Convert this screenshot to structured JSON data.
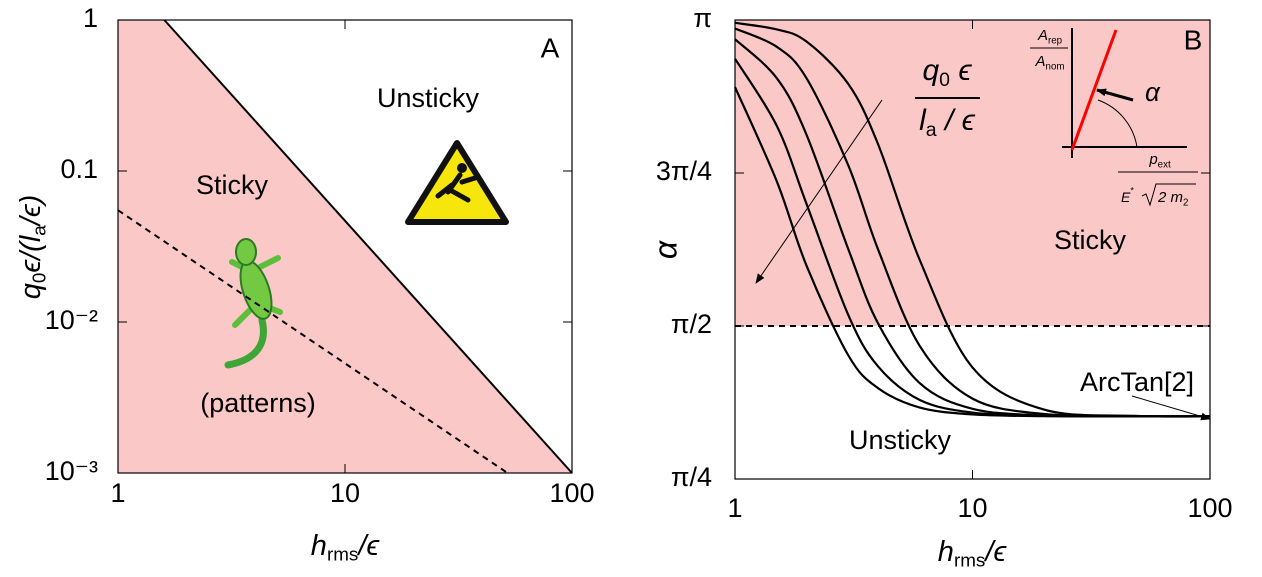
{
  "chart_data": [
    {
      "type": "line",
      "panel_label": "A",
      "xlabel": [
        "h",
        "rms",
        "/ϵ"
      ],
      "ylabel": [
        "q",
        "0",
        "ϵ/(",
        "l",
        "a",
        "/ϵ)"
      ],
      "xscale": "log",
      "yscale": "log",
      "xlim": [
        1,
        100
      ],
      "ylim": [
        0.001,
        1
      ],
      "xticks": [
        1,
        10,
        100
      ],
      "yticks": [
        {
          "value": 0.001,
          "label": "10⁻³"
        },
        {
          "value": 0.01,
          "label": "10⁻²"
        },
        0.1,
        1
      ],
      "region_color": "#fbc8c8",
      "series": [
        {
          "x": [
            1.6,
            100
          ],
          "values": [
            1,
            0.001
          ],
          "color": "#000000",
          "dash": false
        },
        {
          "x": [
            1,
            52
          ],
          "values": [
            0.055,
            0.001
          ],
          "color": "#000000",
          "dash": true
        }
      ],
      "annotations": [
        "Unsticky",
        "Sticky",
        "(patterns)"
      ]
    },
    {
      "type": "line",
      "panel_label": "B",
      "xlabel": [
        "h",
        "rms",
        "/ϵ"
      ],
      "ylabel": "α",
      "xscale": "log",
      "yscale": "linear",
      "xlim": [
        1,
        100
      ],
      "ylim": [
        0.7854,
        3.1416
      ],
      "xticks": [
        1,
        10,
        100
      ],
      "yticks": [
        {
          "value": 0.7854,
          "label": "π/4"
        },
        {
          "value": 1.5708,
          "label": "π/2"
        },
        {
          "value": 2.3562,
          "label": "3π/4"
        },
        {
          "value": 3.1416,
          "label": "π"
        }
      ],
      "x": [
        1,
        1.5,
        2,
        3,
        4,
        6,
        10,
        20,
        50,
        100
      ],
      "series": [
        {
          "color": "#000000",
          "values": [
            3.127,
            3.093,
            3.031,
            2.813,
            2.505,
            1.909,
            1.358,
            1.142,
            1.109,
            1.107
          ]
        },
        {
          "color": "#000000",
          "values": [
            3.098,
            3.004,
            2.843,
            2.395,
            1.965,
            1.468,
            1.198,
            1.119,
            1.108,
            1.107
          ]
        },
        {
          "color": "#000000",
          "values": [
            3.043,
            2.843,
            2.553,
            1.965,
            1.585,
            1.277,
            1.146,
            1.112,
            1.107,
            1.107
          ]
        },
        {
          "color": "#000000",
          "values": [
            2.943,
            2.598,
            2.198,
            1.627,
            1.364,
            1.191,
            1.126,
            1.109,
            1.107,
            1.107
          ]
        },
        {
          "color": "#000000",
          "values": [
            2.797,
            2.313,
            1.881,
            1.42,
            1.252,
            1.152,
            1.117,
            1.108,
            1.107,
            1.107
          ]
        }
      ],
      "threshold": 1.5708,
      "region_color": "#fbc8c8",
      "annotations": [
        "Sticky",
        "Unsticky",
        "ArcTan[2]"
      ],
      "parameter_label": {
        "numerator": [
          "q",
          "0",
          " ϵ"
        ],
        "denominator": [
          "l",
          "a",
          " / ϵ"
        ]
      },
      "inset": {
        "line_color": "#ff0000",
        "y_num": [
          "A",
          "rep"
        ],
        "y_den": [
          "A",
          "nom"
        ],
        "x_num": [
          "p",
          "ext"
        ],
        "x_den": {
          "prefix": [
            "E",
            "*"
          ],
          "radicand": [
            "2 m",
            "2"
          ]
        },
        "angle": "α"
      }
    }
  ]
}
